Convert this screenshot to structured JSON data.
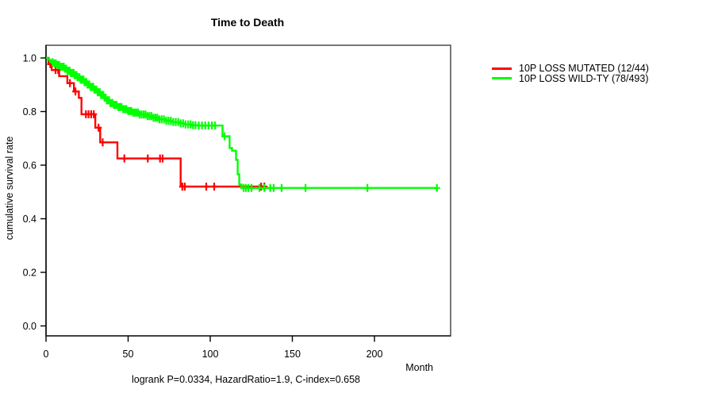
{
  "title": "Time to Death",
  "footer": "logrank P=0.0334, HazardRatio=1.9, C-index=0.658",
  "axes": {
    "x_label": "Month",
    "y_label": "cumulative survival rate",
    "x_tick_labels": [
      "0",
      "50",
      "100",
      "150",
      "200"
    ],
    "y_tick_labels": [
      "0.0",
      "0.2",
      "0.4",
      "0.6",
      "0.8",
      "1.0"
    ]
  },
  "legend": [
    {
      "label": "10P LOSS MUTATED (12/44)",
      "color": "#ff0000"
    },
    {
      "label": "10P LOSS WILD-TY (78/493)",
      "color": "#00ff00"
    }
  ],
  "chart_data": {
    "type": "line",
    "subtype": "kaplan-meier-step",
    "title": "Time to Death",
    "xlabel": "Month",
    "ylabel": "cumulative survival rate",
    "xlim": [
      0,
      246
    ],
    "ylim": [
      0.0,
      1.0
    ],
    "x_ticks": [
      0,
      50,
      100,
      150,
      200
    ],
    "y_ticks": [
      0.0,
      0.2,
      0.4,
      0.6,
      0.8,
      1.0
    ],
    "grid": false,
    "legend_position": "right-outside",
    "annotation": "logrank P=0.0334, HazardRatio=1.9, C-index=0.658",
    "series": [
      {
        "name": "10P LOSS MUTATED (12/44)",
        "color": "#ff0000",
        "n": 44,
        "events": 12,
        "steps": [
          [
            0,
            1.0
          ],
          [
            1.5,
            0.977
          ],
          [
            3.5,
            0.955
          ],
          [
            8,
            0.932
          ],
          [
            13,
            0.906
          ],
          [
            17,
            0.875
          ],
          [
            20,
            0.851
          ],
          [
            21.6,
            0.79
          ],
          [
            30,
            0.74
          ],
          [
            33,
            0.685
          ],
          [
            43.5,
            0.625
          ],
          [
            82,
            0.52
          ]
        ],
        "end_month": 133.5,
        "censors": [
          2.6,
          5.8,
          7.4,
          14.6,
          17.9,
          24.3,
          25.9,
          27.5,
          29.1,
          32,
          34.5,
          47.7,
          62,
          69.4,
          71,
          83,
          84.5,
          97.6,
          102.4,
          131,
          133
        ]
      },
      {
        "name": "10P LOSS WILD-TY (78/493)",
        "color": "#00ff00",
        "n": 493,
        "events": 78,
        "steps": [
          [
            0,
            1.0
          ],
          [
            1,
            0.996
          ],
          [
            2,
            0.992
          ],
          [
            3,
            0.988
          ],
          [
            4,
            0.984
          ],
          [
            5,
            0.98
          ],
          [
            7,
            0.974
          ],
          [
            9,
            0.967
          ],
          [
            11,
            0.96
          ],
          [
            13,
            0.952
          ],
          [
            15,
            0.944
          ],
          [
            17,
            0.936
          ],
          [
            19,
            0.928
          ],
          [
            21,
            0.919
          ],
          [
            23,
            0.91
          ],
          [
            25,
            0.901
          ],
          [
            27,
            0.892
          ],
          [
            29,
            0.882
          ],
          [
            31,
            0.872
          ],
          [
            33,
            0.862
          ],
          [
            35,
            0.852
          ],
          [
            37,
            0.842
          ],
          [
            39,
            0.832
          ],
          [
            41,
            0.825
          ],
          [
            44,
            0.817
          ],
          [
            47,
            0.809
          ],
          [
            50,
            0.802
          ],
          [
            53,
            0.796
          ],
          [
            57,
            0.789
          ],
          [
            61,
            0.783
          ],
          [
            65,
            0.777
          ],
          [
            69,
            0.771
          ],
          [
            73,
            0.766
          ],
          [
            77,
            0.761
          ],
          [
            81,
            0.756
          ],
          [
            85,
            0.752
          ],
          [
            89,
            0.749
          ],
          [
            93,
            0.748
          ],
          [
            107.5,
            0.708
          ],
          [
            111.8,
            0.664
          ],
          [
            113.3,
            0.654
          ],
          [
            115.7,
            0.62
          ],
          [
            116.7,
            0.566
          ],
          [
            117.7,
            0.528
          ],
          [
            119,
            0.515
          ]
        ],
        "end_month": 238,
        "censors": [
          4,
          5,
          6,
          7,
          8,
          9,
          10,
          10.8,
          11.5,
          12.3,
          13,
          13.7,
          14.4,
          15,
          15.6,
          16.2,
          16.8,
          17.4,
          18,
          18.6,
          19.2,
          19.8,
          20.4,
          21,
          21.6,
          22.2,
          22.8,
          23.4,
          24,
          24.6,
          25.2,
          25.8,
          26.4,
          27,
          27.6,
          28.2,
          28.8,
          29.4,
          30,
          30.7,
          31.4,
          32.1,
          32.8,
          33.5,
          34.2,
          34.9,
          35.6,
          36.3,
          37,
          37.7,
          38.4,
          39.1,
          39.8,
          40.5,
          41.3,
          42.1,
          43,
          44,
          45,
          46,
          47,
          48,
          49,
          50,
          51,
          52,
          53,
          54,
          55,
          56,
          57,
          58.2,
          59.4,
          60.6,
          61.8,
          63,
          64.2,
          65.4,
          66.6,
          67.8,
          69,
          70.4,
          71.8,
          73.2,
          74.6,
          76,
          77.5,
          79,
          80.5,
          82,
          83.5,
          85,
          86.5,
          88,
          89.5,
          91,
          93,
          95,
          97,
          99,
          101,
          103,
          108.7,
          120.3,
          121.7,
          123.2,
          125.1,
          130,
          133,
          136.5,
          138.6,
          143.5,
          158,
          195.7,
          238
        ]
      }
    ]
  }
}
